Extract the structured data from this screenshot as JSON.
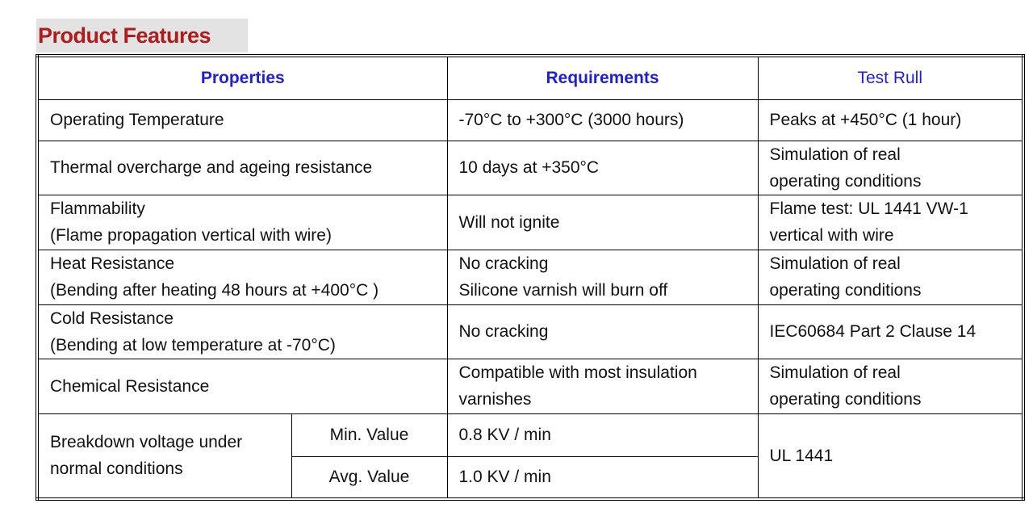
{
  "header": {
    "title": "Product Features"
  },
  "table": {
    "columns": [
      "Properties",
      "Requirements",
      "Test Rull"
    ],
    "rows": [
      {
        "property": [
          "Operating Temperature"
        ],
        "requirement": [
          "-70°C to +300°C (3000 hours)"
        ],
        "test": [
          "Peaks at +450°C (1 hour)"
        ]
      },
      {
        "property": [
          "Thermal overcharge and ageing resistance"
        ],
        "requirement": [
          "10 days at +350°C"
        ],
        "test": [
          "Simulation of real",
          "operating conditions"
        ]
      },
      {
        "property": [
          "Flammability",
          "(Flame propagation vertical with wire)"
        ],
        "requirement": [
          "Will not ignite"
        ],
        "test": [
          "Flame test: UL 1441 VW-1",
          "vertical with wire"
        ]
      },
      {
        "property": [
          "Heat Resistance",
          "(Bending after heating 48 hours at +400°C )"
        ],
        "requirement": [
          "No cracking",
          "Silicone varnish will burn off"
        ],
        "test": [
          "Simulation of real",
          "operating conditions"
        ]
      },
      {
        "property": [
          "Cold Resistance",
          "(Bending at low temperature at -70°C)"
        ],
        "requirement": [
          "No cracking"
        ],
        "test": [
          "IEC60684 Part 2 Clause 14"
        ]
      },
      {
        "property": [
          "Chemical Resistance"
        ],
        "requirement": [
          "Compatible with most insulation",
          "varnishes"
        ],
        "test": [
          "Simulation of real",
          "operating conditions"
        ]
      },
      {
        "property": [
          "Breakdown voltage under",
          "normal conditions"
        ],
        "sub": [
          {
            "label": "Min. Value",
            "requirement": "0.8 KV / min"
          },
          {
            "label": "Avg. Value",
            "requirement": "1.0 KV / min"
          }
        ],
        "test": [
          "UL 1441"
        ]
      }
    ]
  }
}
